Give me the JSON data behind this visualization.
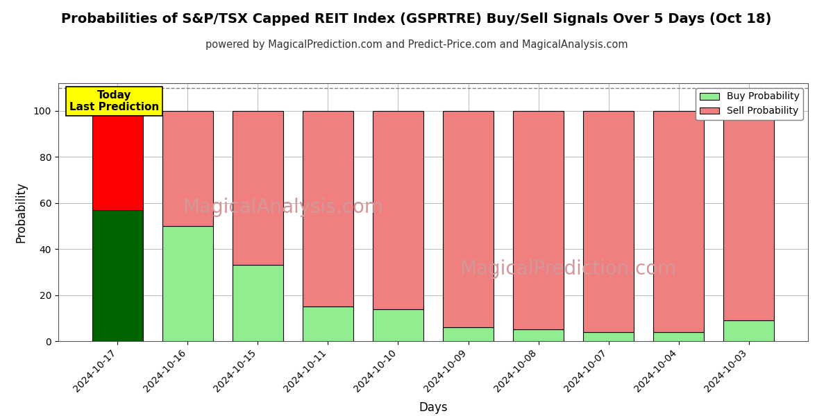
{
  "title": "Probabilities of S&P/TSX Capped REIT Index (GSPRTRE) Buy/Sell Signals Over 5 Days (Oct 18)",
  "subtitle": "powered by MagicalPrediction.com and Predict-Price.com and MagicalAnalysis.com",
  "xlabel": "Days",
  "ylabel": "Probability",
  "ylim": [
    0,
    112
  ],
  "yticks": [
    0,
    20,
    40,
    60,
    80,
    100
  ],
  "dashed_line_y": 110,
  "categories": [
    "2024-10-17",
    "2024-10-16",
    "2024-10-15",
    "2024-10-11",
    "2024-10-10",
    "2024-10-09",
    "2024-10-08",
    "2024-10-07",
    "2024-10-04",
    "2024-10-03"
  ],
  "buy_values": [
    57,
    50,
    33,
    15,
    14,
    6,
    5,
    4,
    4,
    9
  ],
  "sell_values": [
    43,
    50,
    67,
    85,
    86,
    94,
    95,
    96,
    96,
    91
  ],
  "buy_color_today": "#006400",
  "sell_color_today": "#FF0000",
  "buy_color_normal": "#90EE90",
  "sell_color_normal": "#F08080",
  "bar_edge_color": "#000000",
  "bar_width": 0.72,
  "today_label_text": "Today\nLast Prediction",
  "today_label_bg": "#FFFF00",
  "legend_buy_label": "Buy Probability",
  "legend_sell_label": "Sell Probability",
  "watermark_texts": [
    "MagicalAnalysis.com",
    "MagicalPrediction.com"
  ],
  "watermark_color": "#D4979A",
  "background_color": "#FFFFFF",
  "grid_color": "#BBBBBB",
  "title_fontsize": 14,
  "subtitle_fontsize": 10.5,
  "axis_label_fontsize": 12
}
